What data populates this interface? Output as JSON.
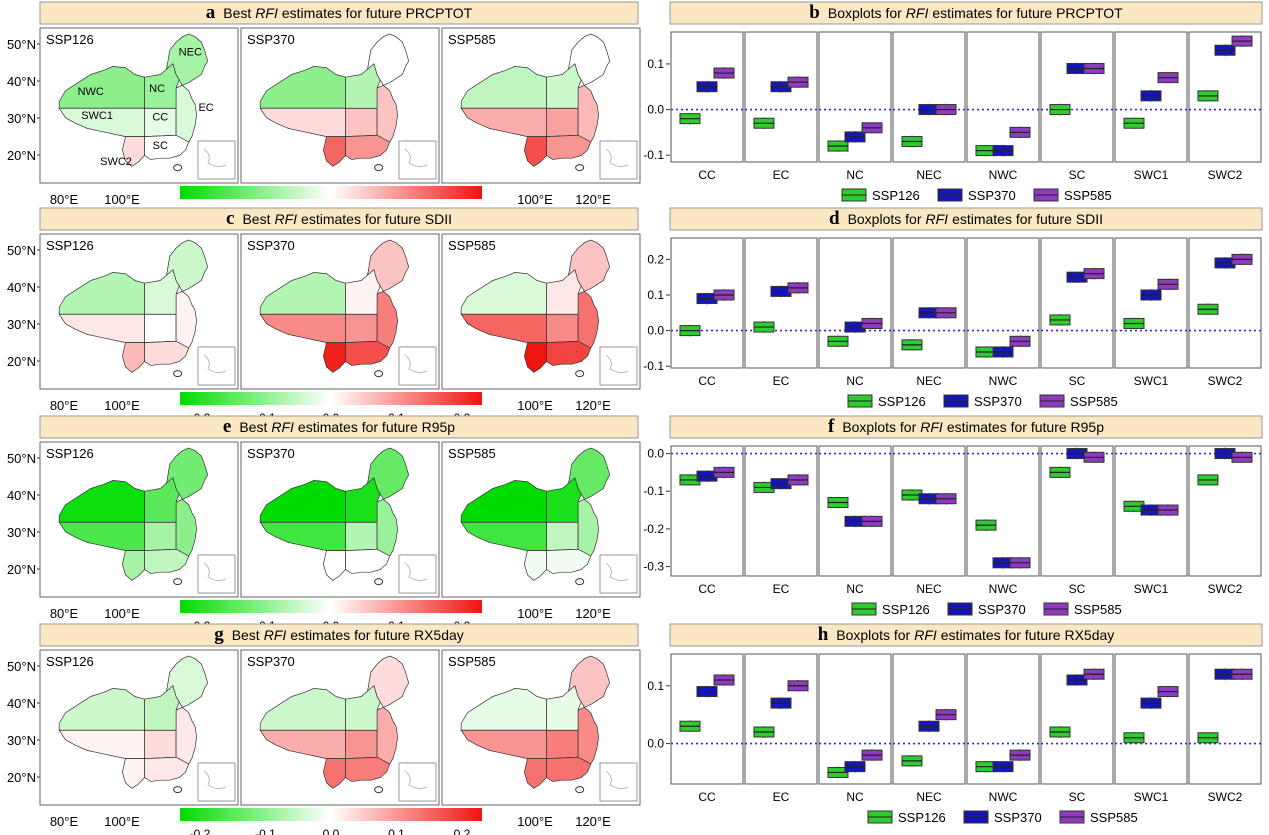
{
  "figure": {
    "scenarios": [
      "SSP126",
      "SSP370",
      "SSP585"
    ],
    "scenario_colors": [
      "#2ecc2e",
      "#1515b8",
      "#8e3bbf"
    ],
    "region_codes": [
      "CC",
      "EC",
      "NC",
      "NEC",
      "NWC",
      "SC",
      "SWC1",
      "SWC2"
    ],
    "map_lat_ticks": [
      "50°N",
      "40°N",
      "30°N",
      "20°N"
    ],
    "map_lon_ticks_left": [
      "80°E",
      "100°E"
    ],
    "map_lon_ticks_right": [
      "100°E",
      "120°E"
    ],
    "colorbar_ticks": [
      "-0.2",
      "-0.1",
      "0.0",
      "0.1",
      "0.2"
    ],
    "map_region_labels": [
      "NWC",
      "NC",
      "NEC",
      "CC",
      "EC",
      "SWC1",
      "SC",
      "SWC2"
    ],
    "italic_term": "RFI"
  },
  "chart_data": [
    {
      "type": "choropleth",
      "letter": "a",
      "title_pre": "Best",
      "title_post": "estimates for future PRCPTOT",
      "regions": [
        "CC",
        "EC",
        "NC",
        "NEC",
        "NWC",
        "SC",
        "SWC1",
        "SWC2"
      ],
      "values": {
        "SSP126": [
          -0.02,
          -0.03,
          -0.08,
          -0.07,
          -0.09,
          0.0,
          -0.03,
          0.03
        ],
        "SSP370": [
          0.05,
          0.05,
          -0.06,
          0.0,
          -0.09,
          0.09,
          0.03,
          0.13
        ],
        "SSP585": [
          0.08,
          0.06,
          -0.04,
          0.0,
          -0.05,
          0.09,
          0.07,
          0.15
        ]
      },
      "color_range": [
        -0.2,
        0.2
      ]
    },
    {
      "type": "box",
      "letter": "b",
      "title_pre": "Boxplots for",
      "title_post": "estimates for future PRCPTOT",
      "categories": [
        "CC",
        "EC",
        "NC",
        "NEC",
        "NWC",
        "SC",
        "SWC1",
        "SWC2"
      ],
      "yticks": [
        0.1,
        0.0,
        -0.1
      ],
      "yticklabels": [
        "0.1",
        "0.0",
        "-0.1"
      ],
      "ylim": [
        -0.115,
        0.17
      ],
      "series": [
        {
          "name": "SSP126",
          "medians": [
            -0.02,
            -0.03,
            -0.08,
            -0.07,
            -0.09,
            0.0,
            -0.03,
            0.03
          ]
        },
        {
          "name": "SSP370",
          "medians": [
            0.05,
            0.05,
            -0.06,
            0.0,
            -0.09,
            0.09,
            0.03,
            0.13
          ]
        },
        {
          "name": "SSP585",
          "medians": [
            0.08,
            0.06,
            -0.04,
            0.0,
            -0.05,
            0.09,
            0.07,
            0.15
          ]
        }
      ]
    },
    {
      "type": "choropleth",
      "letter": "c",
      "title_pre": "Best",
      "title_post": "estimates for future SDII",
      "regions": [
        "CC",
        "EC",
        "NC",
        "NEC",
        "NWC",
        "SC",
        "SWC1",
        "SWC2"
      ],
      "values": {
        "SSP126": [
          0.0,
          0.01,
          -0.03,
          -0.04,
          -0.06,
          0.03,
          0.02,
          0.06
        ],
        "SSP370": [
          0.09,
          0.11,
          0.01,
          0.05,
          -0.06,
          0.15,
          0.1,
          0.19
        ],
        "SSP585": [
          0.1,
          0.12,
          0.02,
          0.05,
          -0.03,
          0.16,
          0.13,
          0.2
        ]
      },
      "color_range": [
        -0.2,
        0.2
      ]
    },
    {
      "type": "box",
      "letter": "d",
      "title_pre": "Boxplots for",
      "title_post": "estimates for future SDII",
      "categories": [
        "CC",
        "EC",
        "NC",
        "NEC",
        "NWC",
        "SC",
        "SWC1",
        "SWC2"
      ],
      "yticks": [
        0.2,
        0.1,
        0.0,
        -0.1
      ],
      "yticklabels": [
        "0.2",
        "0.1",
        "0.0",
        "-0.1"
      ],
      "ylim": [
        -0.105,
        0.26
      ],
      "series": [
        {
          "name": "SSP126",
          "medians": [
            0.0,
            0.01,
            -0.03,
            -0.04,
            -0.06,
            0.03,
            0.02,
            0.06
          ]
        },
        {
          "name": "SSP370",
          "medians": [
            0.09,
            0.11,
            0.01,
            0.05,
            -0.06,
            0.15,
            0.1,
            0.19
          ]
        },
        {
          "name": "SSP585",
          "medians": [
            0.1,
            0.12,
            0.02,
            0.05,
            -0.03,
            0.16,
            0.13,
            0.2
          ]
        }
      ]
    },
    {
      "type": "choropleth",
      "letter": "e",
      "title_pre": "Best",
      "title_post": "estimates for future R95p",
      "regions": [
        "CC",
        "EC",
        "NC",
        "NEC",
        "NWC",
        "SC",
        "SWC1",
        "SWC2"
      ],
      "values": {
        "SSP126": [
          -0.07,
          -0.09,
          -0.13,
          -0.11,
          -0.19,
          -0.05,
          -0.14,
          -0.07
        ],
        "SSP370": [
          -0.06,
          -0.08,
          -0.18,
          -0.12,
          -0.29,
          0.0,
          -0.15,
          0.0
        ],
        "SSP585": [
          -0.05,
          -0.07,
          -0.18,
          -0.12,
          -0.29,
          -0.01,
          -0.15,
          -0.01
        ]
      },
      "color_range": [
        -0.2,
        0.2
      ]
    },
    {
      "type": "box",
      "letter": "f",
      "title_pre": "Boxplots for",
      "title_post": "estimates for future R95p",
      "categories": [
        "CC",
        "EC",
        "NC",
        "NEC",
        "NWC",
        "SC",
        "SWC1",
        "SWC2"
      ],
      "yticks": [
        0.0,
        -0.1,
        -0.2,
        -0.3
      ],
      "yticklabels": [
        "0.0",
        "-0.1",
        "-0.2",
        "-0.3"
      ],
      "ylim": [
        -0.325,
        0.02
      ],
      "series": [
        {
          "name": "SSP126",
          "medians": [
            -0.07,
            -0.09,
            -0.13,
            -0.11,
            -0.19,
            -0.05,
            -0.14,
            -0.07
          ]
        },
        {
          "name": "SSP370",
          "medians": [
            -0.06,
            -0.08,
            -0.18,
            -0.12,
            -0.29,
            0.0,
            -0.15,
            0.0
          ]
        },
        {
          "name": "SSP585",
          "medians": [
            -0.05,
            -0.07,
            -0.18,
            -0.12,
            -0.29,
            -0.01,
            -0.15,
            -0.01
          ]
        }
      ]
    },
    {
      "type": "choropleth",
      "letter": "g",
      "title_pre": "Best",
      "title_post": "estimates for future RX5day",
      "regions": [
        "CC",
        "EC",
        "NC",
        "NEC",
        "NWC",
        "SC",
        "SWC1",
        "SWC2"
      ],
      "values": {
        "SSP126": [
          0.03,
          0.02,
          -0.05,
          -0.03,
          -0.04,
          0.02,
          0.01,
          0.01
        ],
        "SSP370": [
          0.09,
          0.07,
          -0.04,
          0.03,
          -0.04,
          0.11,
          0.07,
          0.12
        ],
        "SSP585": [
          0.11,
          0.1,
          -0.02,
          0.05,
          -0.02,
          0.12,
          0.09,
          0.12
        ]
      },
      "color_range": [
        -0.2,
        0.2
      ]
    },
    {
      "type": "box",
      "letter": "h",
      "title_pre": "Boxplots for",
      "title_post": "estimates for future RX5day",
      "categories": [
        "CC",
        "EC",
        "NC",
        "NEC",
        "NWC",
        "SC",
        "SWC1",
        "SWC2"
      ],
      "yticks": [
        0.1,
        0.0
      ],
      "yticklabels": [
        "0.1",
        "0.0"
      ],
      "ylim": [
        -0.07,
        0.155
      ],
      "series": [
        {
          "name": "SSP126",
          "medians": [
            0.03,
            0.02,
            -0.05,
            -0.03,
            -0.04,
            0.02,
            0.01,
            0.01
          ]
        },
        {
          "name": "SSP370",
          "medians": [
            0.09,
            0.07,
            -0.04,
            0.03,
            -0.04,
            0.11,
            0.07,
            0.12
          ]
        },
        {
          "name": "SSP585",
          "medians": [
            0.11,
            0.1,
            -0.02,
            0.05,
            -0.02,
            0.12,
            0.09,
            0.12
          ]
        }
      ]
    }
  ]
}
